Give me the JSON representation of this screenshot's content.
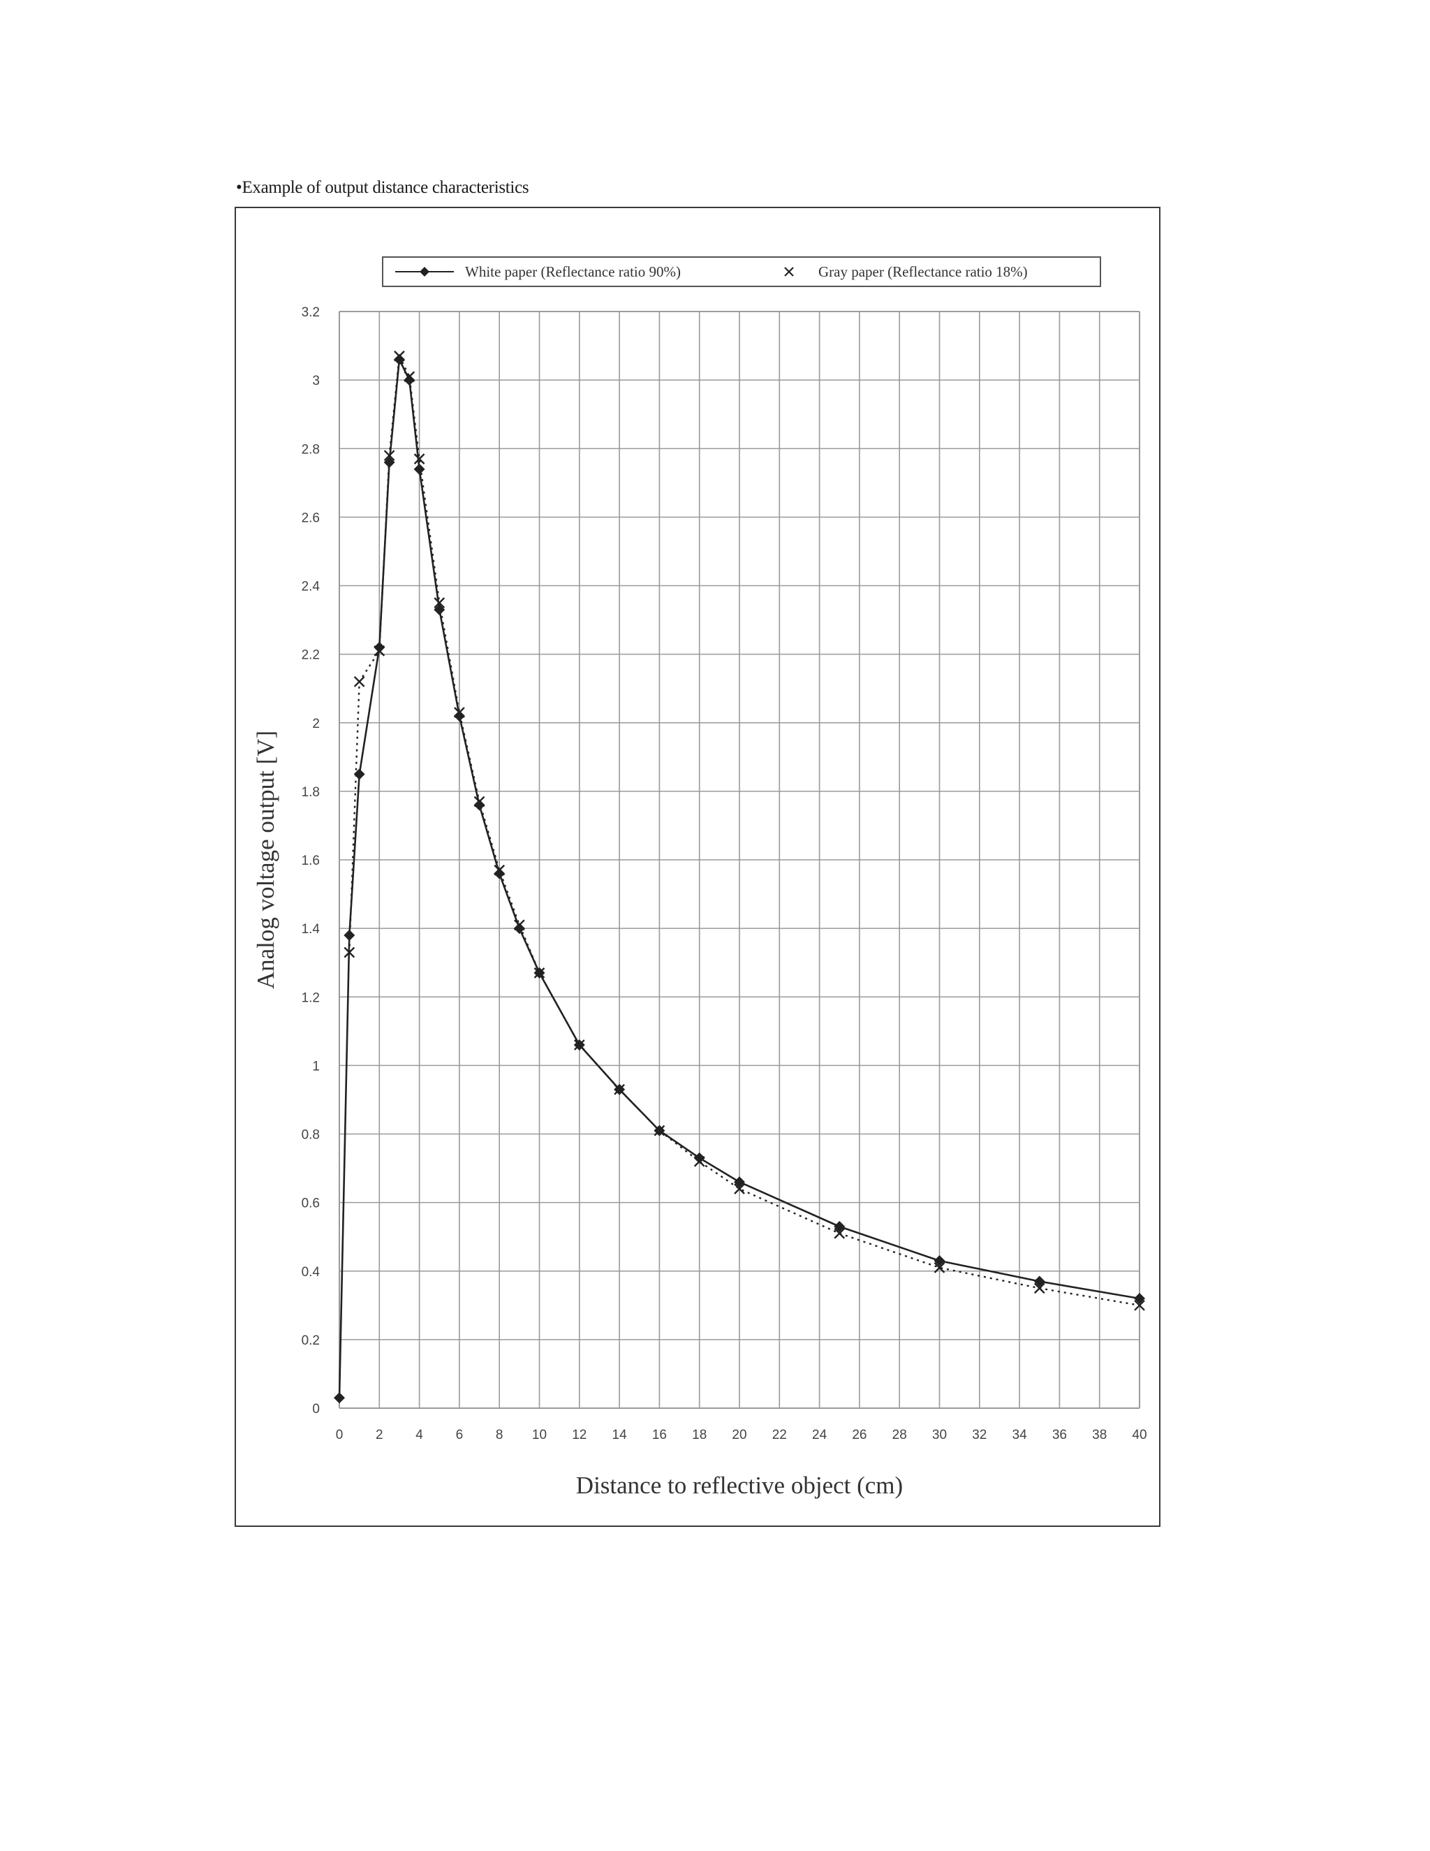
{
  "caption": "•Example of output distance characteristics",
  "chart_data": {
    "type": "line",
    "title": "",
    "xlabel": "Distance to reflective object   (cm)",
    "ylabel": "Analog voltage output  [V]",
    "xlim": [
      0,
      40
    ],
    "ylim": [
      0,
      3.2
    ],
    "grid": true,
    "legend_position": "top",
    "x_ticks": [
      "0",
      "2",
      "4",
      "6",
      "8",
      "10",
      "12",
      "14",
      "16",
      "18",
      "20",
      "22",
      "24",
      "26",
      "28",
      "30",
      "32",
      "34",
      "36",
      "38",
      "40"
    ],
    "y_ticks": [
      "0",
      "0.2",
      "0.4",
      "0.6",
      "0.8",
      "1",
      "1.2",
      "1.4",
      "1.6",
      "1.8",
      "2",
      "2.2",
      "2.4",
      "2.6",
      "2.8",
      "3",
      "3.2"
    ],
    "series": [
      {
        "name": "White paper (Reflectance ratio 90%)",
        "marker": "diamond",
        "line_style": "solid",
        "points": [
          {
            "x": 0,
            "y": 0.03
          },
          {
            "x": 0.5,
            "y": 1.38
          },
          {
            "x": 1,
            "y": 1.85
          },
          {
            "x": 2,
            "y": 2.22
          },
          {
            "x": 2.5,
            "y": 2.76
          },
          {
            "x": 3,
            "y": 3.06
          },
          {
            "x": 3.5,
            "y": 3.0
          },
          {
            "x": 4,
            "y": 2.74
          },
          {
            "x": 5,
            "y": 2.33
          },
          {
            "x": 6,
            "y": 2.02
          },
          {
            "x": 7,
            "y": 1.76
          },
          {
            "x": 8,
            "y": 1.56
          },
          {
            "x": 9,
            "y": 1.4
          },
          {
            "x": 10,
            "y": 1.27
          },
          {
            "x": 12,
            "y": 1.06
          },
          {
            "x": 14,
            "y": 0.93
          },
          {
            "x": 16,
            "y": 0.81
          },
          {
            "x": 18,
            "y": 0.73
          },
          {
            "x": 20,
            "y": 0.66
          },
          {
            "x": 25,
            "y": 0.53
          },
          {
            "x": 30,
            "y": 0.43
          },
          {
            "x": 35,
            "y": 0.37
          },
          {
            "x": 40,
            "y": 0.32
          }
        ]
      },
      {
        "name": "Gray paper (Reflectance ratio 18%)",
        "marker": "x",
        "line_style": "dotted",
        "points": [
          {
            "x": 0.5,
            "y": 1.33
          },
          {
            "x": 1,
            "y": 2.12
          },
          {
            "x": 2,
            "y": 2.21
          },
          {
            "x": 2.5,
            "y": 2.78
          },
          {
            "x": 3,
            "y": 3.07
          },
          {
            "x": 3.5,
            "y": 3.01
          },
          {
            "x": 4,
            "y": 2.77
          },
          {
            "x": 5,
            "y": 2.35
          },
          {
            "x": 6,
            "y": 2.03
          },
          {
            "x": 7,
            "y": 1.77
          },
          {
            "x": 8,
            "y": 1.57
          },
          {
            "x": 9,
            "y": 1.41
          },
          {
            "x": 10,
            "y": 1.27
          },
          {
            "x": 12,
            "y": 1.06
          },
          {
            "x": 14,
            "y": 0.93
          },
          {
            "x": 16,
            "y": 0.81
          },
          {
            "x": 18,
            "y": 0.72
          },
          {
            "x": 20,
            "y": 0.64
          },
          {
            "x": 25,
            "y": 0.51
          },
          {
            "x": 30,
            "y": 0.41
          },
          {
            "x": 35,
            "y": 0.35
          },
          {
            "x": 40,
            "y": 0.3
          }
        ]
      }
    ],
    "colors": {
      "line": "#222222",
      "grid": "#9a9a9a"
    }
  }
}
